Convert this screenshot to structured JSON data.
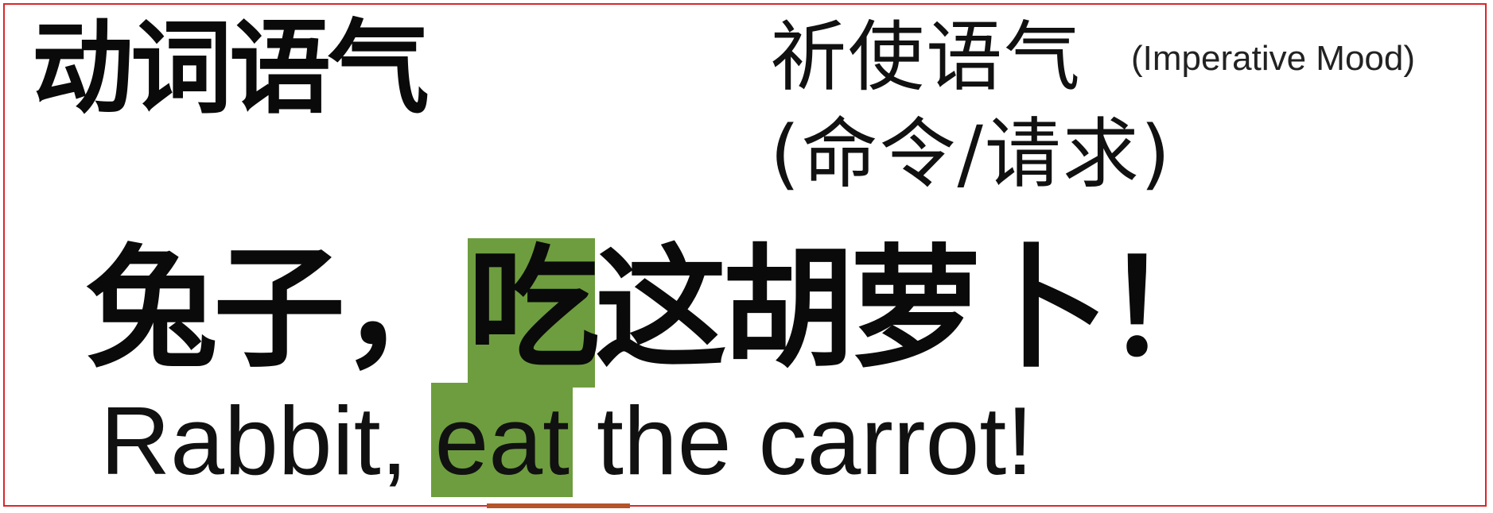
{
  "title": "动词语气",
  "mood": {
    "name_cn": "祈使语气",
    "name_en": "(Imperative Mood)",
    "subtitle": "(命令/请求)"
  },
  "example": {
    "cn_before": "兔子，",
    "cn_highlight": "吃",
    "cn_after": "这胡萝卜！",
    "en_before": "Rabbit, ",
    "en_highlight": "eat",
    "en_after": " the carrot!"
  },
  "colors": {
    "highlight": "#6e9d3f",
    "frame": "#d9282b",
    "underline": "#b4542a"
  }
}
